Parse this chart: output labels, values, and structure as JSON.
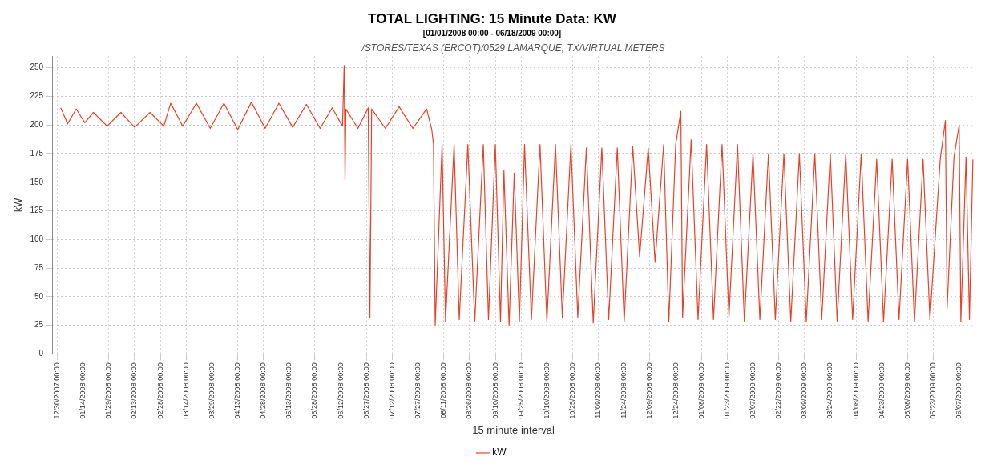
{
  "chart_data": {
    "type": "line",
    "title": "TOTAL LIGHTING: 15 Minute Data: KW",
    "subtitle": "[01/01/2008 00:00 - 06/18/2009 00:00]",
    "annotations": [
      "/STORES/TEXAS (ERCOT)/0529 LAMARQUE, TX/VIRTUAL METERS"
    ],
    "xlabel": "15 minute interval",
    "ylabel": "kW",
    "x": [
      "2008-01-01",
      "2008-01-05",
      "2008-01-10",
      "2008-01-15",
      "2008-01-20",
      "2008-01-28",
      "2008-02-05",
      "2008-02-13",
      "2008-02-22",
      "2008-03-01",
      "2008-03-05",
      "2008-03-12",
      "2008-03-20",
      "2008-03-28",
      "2008-04-05",
      "2008-04-13",
      "2008-04-21",
      "2008-04-29",
      "2008-05-07",
      "2008-05-15",
      "2008-05-23",
      "2008-05-31",
      "2008-06-07",
      "2008-06-13",
      "2008-06-14",
      "2008-06-14T12:00",
      "2008-06-15",
      "2008-06-22",
      "2008-06-28",
      "2008-06-29",
      "2008-06-30",
      "2008-07-08",
      "2008-07-16",
      "2008-07-24",
      "2008-08-01",
      "2008-08-04",
      "2008-08-05",
      "2008-08-06",
      "2008-08-10",
      "2008-08-12",
      "2008-08-17",
      "2008-08-20",
      "2008-08-25",
      "2008-08-29",
      "2008-09-03",
      "2008-09-06",
      "2008-09-10",
      "2008-09-13",
      "2008-09-15",
      "2008-09-18",
      "2008-09-21",
      "2008-09-24",
      "2008-09-27",
      "2008-10-01",
      "2008-10-06",
      "2008-10-10",
      "2008-10-15",
      "2008-10-19",
      "2008-10-24",
      "2008-10-28",
      "2008-11-02",
      "2008-11-06",
      "2008-11-11",
      "2008-11-15",
      "2008-11-20",
      "2008-11-24",
      "2008-11-29",
      "2008-12-03",
      "2008-12-08",
      "2008-12-12",
      "2008-12-17",
      "2008-12-20",
      "2008-12-24",
      "2008-12-27",
      "2008-12-28",
      "2009-01-02",
      "2009-01-06",
      "2009-01-11",
      "2009-01-15",
      "2009-01-20",
      "2009-01-24",
      "2009-01-29",
      "2009-02-02",
      "2009-02-07",
      "2009-02-11",
      "2009-02-16",
      "2009-02-20",
      "2009-02-25",
      "2009-03-01",
      "2009-03-06",
      "2009-03-10",
      "2009-03-15",
      "2009-03-19",
      "2009-03-24",
      "2009-03-28",
      "2009-04-02",
      "2009-04-06",
      "2009-04-11",
      "2009-04-15",
      "2009-04-20",
      "2009-04-24",
      "2009-04-29",
      "2009-05-03",
      "2009-05-08",
      "2009-05-12",
      "2009-05-17",
      "2009-05-21",
      "2009-05-27",
      "2009-05-30",
      "2009-05-31",
      "2009-06-04",
      "2009-06-07",
      "2009-06-08",
      "2009-06-11",
      "2009-06-13",
      "2009-06-15"
    ],
    "series": [
      {
        "name": "kW",
        "color": "#e8402a",
        "values": [
          215,
          201,
          214,
          202,
          211,
          199,
          211,
          198,
          211,
          199,
          219,
          199,
          219,
          197,
          219,
          196,
          220,
          197,
          219,
          198,
          218,
          197,
          215,
          199,
          252,
          152,
          214,
          197,
          215,
          32,
          214,
          197,
          216,
          197,
          214,
          196,
          183,
          25,
          183,
          28,
          183,
          30,
          183,
          28,
          183,
          30,
          183,
          28,
          160,
          25,
          158,
          28,
          183,
          30,
          183,
          28,
          183,
          32,
          183,
          32,
          180,
          27,
          180,
          30,
          180,
          28,
          181,
          85,
          180,
          80,
          183,
          28,
          183,
          212,
          32,
          187,
          30,
          183,
          30,
          183,
          32,
          183,
          28,
          175,
          30,
          175,
          30,
          175,
          28,
          175,
          28,
          175,
          30,
          175,
          28,
          175,
          30,
          175,
          28,
          170,
          28,
          170,
          30,
          170,
          28,
          170,
          30,
          170,
          204,
          40,
          172,
          200,
          28,
          172,
          30,
          170
        ]
      }
    ],
    "xlim": [
      "2007-12-27",
      "2009-06-16"
    ],
    "xticks": [
      {
        "value": "2007-12-30",
        "label": "12/30/2007 00:00"
      },
      {
        "value": "2008-01-14",
        "label": "01/14/2008 00:00"
      },
      {
        "value": "2008-01-29",
        "label": "01/29/2008 00:00"
      },
      {
        "value": "2008-02-13",
        "label": "02/13/2008 00:00"
      },
      {
        "value": "2008-02-28",
        "label": "02/28/2008 00:00"
      },
      {
        "value": "2008-03-14",
        "label": "03/14/2008 00:00"
      },
      {
        "value": "2008-03-29",
        "label": "03/29/2008 00:00"
      },
      {
        "value": "2008-04-13",
        "label": "04/13/2008 00:00"
      },
      {
        "value": "2008-04-28",
        "label": "04/28/2008 00:00"
      },
      {
        "value": "2008-05-13",
        "label": "05/13/2008 00:00"
      },
      {
        "value": "2008-05-28",
        "label": "05/28/2008 00:00"
      },
      {
        "value": "2008-06-12",
        "label": "06/12/2008 00:00"
      },
      {
        "value": "2008-06-27",
        "label": "06/27/2008 00:00"
      },
      {
        "value": "2008-07-12",
        "label": "07/12/2008 00:00"
      },
      {
        "value": "2008-07-27",
        "label": "07/27/2008 00:00"
      },
      {
        "value": "2008-08-11",
        "label": "08/11/2008 00:00"
      },
      {
        "value": "2008-08-26",
        "label": "08/26/2008 00:00"
      },
      {
        "value": "2008-09-10",
        "label": "09/10/2008 00:00"
      },
      {
        "value": "2008-09-25",
        "label": "09/25/2008 00:00"
      },
      {
        "value": "2008-10-10",
        "label": "10/10/2008 00:00"
      },
      {
        "value": "2008-10-25",
        "label": "10/25/2008 00:00"
      },
      {
        "value": "2008-11-09",
        "label": "11/09/2008 00:00"
      },
      {
        "value": "2008-11-24",
        "label": "11/24/2008 00:00"
      },
      {
        "value": "2008-12-09",
        "label": "12/09/2008 00:00"
      },
      {
        "value": "2008-12-24",
        "label": "12/24/2008 00:00"
      },
      {
        "value": "2009-01-08",
        "label": "01/08/2009 00:00"
      },
      {
        "value": "2009-01-23",
        "label": "01/23/2009 00:00"
      },
      {
        "value": "2009-02-07",
        "label": "02/07/2009 00:00"
      },
      {
        "value": "2009-02-22",
        "label": "02/22/2009 00:00"
      },
      {
        "value": "2009-03-09",
        "label": "03/09/2009 00:00"
      },
      {
        "value": "2009-03-24",
        "label": "03/24/2009 00:00"
      },
      {
        "value": "2009-04-08",
        "label": "04/08/2009 00:00"
      },
      {
        "value": "2009-04-23",
        "label": "04/23/2009 00:00"
      },
      {
        "value": "2009-05-08",
        "label": "05/08/2009 00:00"
      },
      {
        "value": "2009-05-23",
        "label": "05/23/2009 00:00"
      },
      {
        "value": "2009-06-07",
        "label": "06/07/2009 00:00"
      }
    ],
    "ylim": [
      0,
      260
    ],
    "yticks": [
      0,
      25,
      50,
      75,
      100,
      125,
      150,
      175,
      200,
      225,
      250
    ],
    "grid": true,
    "legend": "bottom",
    "marker": "none",
    "line_style": "solid"
  }
}
